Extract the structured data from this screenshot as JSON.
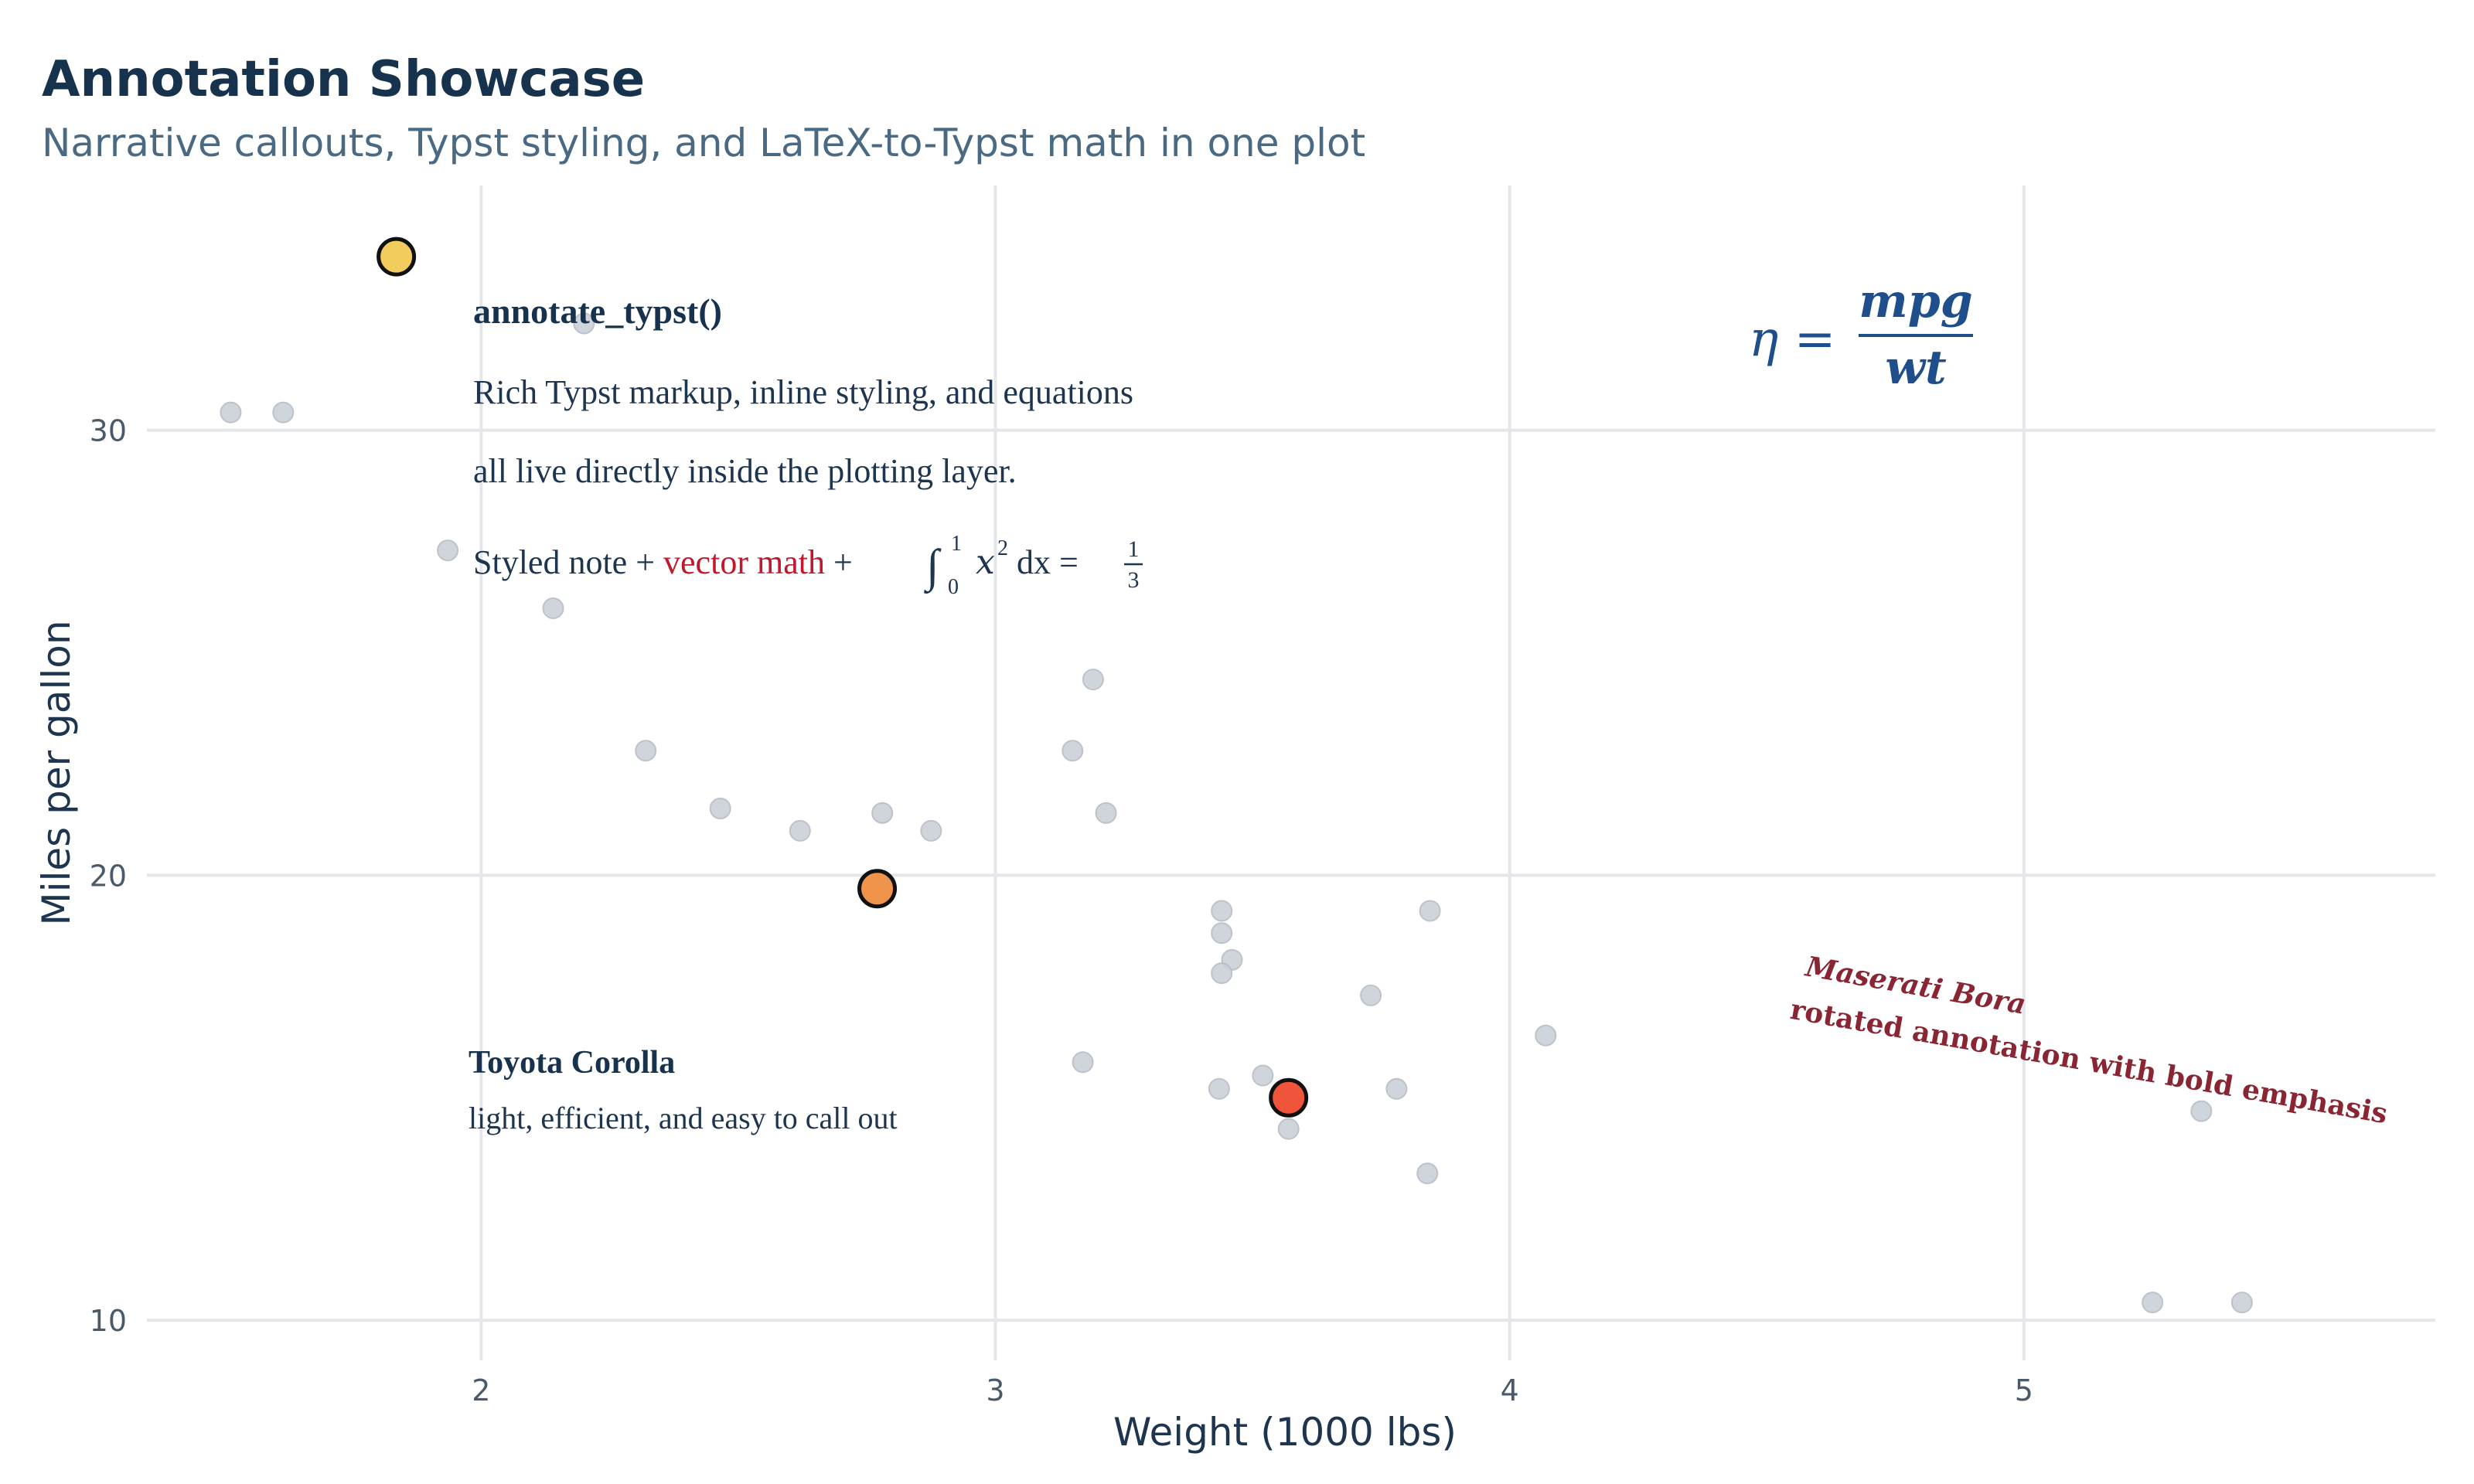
{
  "chart_data": {
    "type": "scatter",
    "title": "Annotation Showcase",
    "subtitle": "Narrative callouts, Typst styling, and LaTeX-to-Typst math in one plot",
    "xlabel": "Weight (1000 lbs)",
    "ylabel": "Miles per gallon",
    "xlim": [
      1.35,
      5.8
    ],
    "ylim": [
      9.1,
      35.5
    ],
    "xticks": [
      2,
      3,
      4,
      5
    ],
    "yticks": [
      10,
      20,
      30
    ],
    "grid": true,
    "colors": {
      "points": "#cbd0d8",
      "highlight_yellow": "#f2cd5d",
      "highlight_orange": "#ef944a",
      "highlight_red": "#f0553c",
      "text_dark": "#17324d",
      "math_blue": "#1f4e8c",
      "accent_red": "#c0182c",
      "maserati_red": "#8a2533"
    },
    "points": [
      {
        "x": 2.62,
        "y": 21.0
      },
      {
        "x": 2.875,
        "y": 21.0
      },
      {
        "x": 2.32,
        "y": 22.8
      },
      {
        "x": 3.215,
        "y": 21.4
      },
      {
        "x": 3.44,
        "y": 18.7
      },
      {
        "x": 3.46,
        "y": 18.1
      },
      {
        "x": 3.57,
        "y": 14.3
      },
      {
        "x": 3.19,
        "y": 24.4
      },
      {
        "x": 3.15,
        "y": 22.8
      },
      {
        "x": 3.44,
        "y": 19.2
      },
      {
        "x": 3.44,
        "y": 17.8
      },
      {
        "x": 4.07,
        "y": 16.4
      },
      {
        "x": 3.73,
        "y": 17.3
      },
      {
        "x": 3.78,
        "y": 15.2
      },
      {
        "x": 5.25,
        "y": 10.4
      },
      {
        "x": 5.424,
        "y": 10.4
      },
      {
        "x": 5.345,
        "y": 14.7
      },
      {
        "x": 2.2,
        "y": 32.4
      },
      {
        "x": 1.615,
        "y": 30.4
      },
      {
        "x": 2.465,
        "y": 21.5
      },
      {
        "x": 3.52,
        "y": 15.5
      },
      {
        "x": 3.435,
        "y": 15.2
      },
      {
        "x": 3.84,
        "y": 13.3
      },
      {
        "x": 3.845,
        "y": 19.2
      },
      {
        "x": 1.935,
        "y": 27.3
      },
      {
        "x": 2.14,
        "y": 26.0
      },
      {
        "x": 1.513,
        "y": 30.4
      },
      {
        "x": 3.17,
        "y": 15.8
      },
      {
        "x": 2.77,
        "y": 19.7
      },
      {
        "x": 2.78,
        "y": 21.4
      }
    ],
    "highlights": [
      {
        "x": 1.835,
        "y": 33.9,
        "color": "highlight_yellow"
      },
      {
        "x": 2.77,
        "y": 19.7,
        "color": "highlight_orange"
      },
      {
        "x": 3.57,
        "y": 15.0,
        "color": "highlight_red"
      }
    ],
    "annotations": {
      "typst_heading": "annotate_typst()",
      "typst_line1": "Rich Typst markup, inline styling, and equations",
      "typst_line2": "all live directly inside the plotting layer.",
      "styled_prefix": "Styled note + ",
      "styled_red": "vector math",
      "styled_suffix": " + ",
      "math_integral": "∫",
      "math_upper": "1",
      "math_lower": "0",
      "math_body": "x",
      "math_sup": "2",
      "math_dx": " dx = ",
      "math_frac_num": "1",
      "math_frac_den": "3",
      "eq_lhs": "η =",
      "eq_num": "mpg",
      "eq_den": "wt",
      "corolla_head": "Toyota Corolla",
      "corolla_body": "light, efficient, and easy to call out",
      "maserati_line1": "Maserati Bora",
      "maserati_line2": "rotated annotation with bold emphasis"
    }
  }
}
